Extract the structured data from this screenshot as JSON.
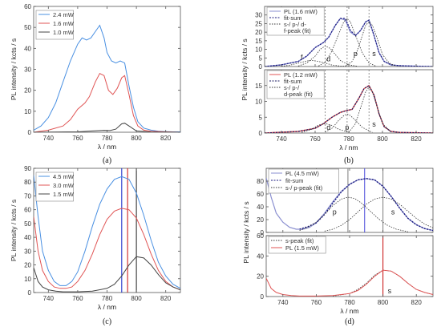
{
  "chart_data": [
    {
      "id": "a",
      "panel_label": "(a)",
      "type": "line",
      "xlabel": "λ / nm",
      "ylabel": "PL intensity / kcts / s",
      "xlim": [
        730,
        830
      ],
      "ylim": [
        0,
        60
      ],
      "xticks": [
        740,
        760,
        780,
        800,
        820
      ],
      "yticks": [
        0,
        10,
        20,
        30,
        40,
        50,
        60
      ],
      "legend_position": "top-left",
      "series": [
        {
          "name": "2.4 mW",
          "color": "#4a90e2",
          "x": [
            730,
            735,
            740,
            745,
            750,
            755,
            760,
            763,
            766,
            769,
            772,
            775,
            778,
            780,
            783,
            786,
            789,
            792,
            795,
            798,
            801,
            805,
            810,
            815,
            820,
            825,
            830
          ],
          "y": [
            1,
            3,
            7,
            14,
            24,
            34,
            42,
            45,
            44,
            45,
            48,
            51,
            45,
            38,
            34,
            33,
            34,
            33,
            22,
            12,
            5,
            2,
            1,
            0.5,
            0.3,
            0.2,
            0.2
          ]
        },
        {
          "name": "1.6 mW",
          "color": "#e05555",
          "x": [
            730,
            740,
            750,
            755,
            760,
            765,
            768,
            772,
            775,
            778,
            781,
            784,
            787,
            790,
            792,
            795,
            798,
            801,
            805,
            810,
            820,
            830
          ],
          "y": [
            0,
            1,
            3,
            6,
            11,
            14,
            17,
            24,
            28,
            27,
            20,
            18,
            21,
            26,
            27,
            18,
            8,
            3,
            1,
            0.5,
            0.2,
            0
          ]
        },
        {
          "name": "1.0 mW",
          "color": "#444444",
          "x": [
            730,
            760,
            770,
            778,
            782,
            786,
            790,
            792,
            795,
            800,
            810,
            830
          ],
          "y": [
            0,
            0.2,
            0.6,
            0.9,
            0.8,
            1.5,
            4,
            4.3,
            3,
            0.6,
            0.1,
            0
          ]
        }
      ]
    },
    {
      "id": "b_upper",
      "panel_label": "(b)",
      "type": "line",
      "xlabel": "λ / nm",
      "ylabel": "PL intensity / kcts / s",
      "xlim": [
        730,
        830
      ],
      "ylim": [
        0,
        35
      ],
      "xticks": [
        740,
        760,
        780,
        800,
        820
      ],
      "yticks": [
        0,
        5,
        10,
        15,
        20,
        25,
        30
      ],
      "vlines": [
        766,
        779,
        792
      ],
      "legend_position": "top-left",
      "legend": [
        "PL (1.6 mW)",
        "fit-sum",
        "s-/ p-/ d-",
        "f-peak (fit)"
      ],
      "annotations": [
        "f",
        "d",
        "p",
        "s"
      ],
      "series": [
        {
          "name": "PL (1.6 mW)",
          "color": "#8a8fd0",
          "x": [
            730,
            740,
            750,
            755,
            760,
            765,
            768,
            772,
            775,
            778,
            781,
            784,
            787,
            790,
            792,
            795,
            798,
            801,
            805,
            810,
            820,
            830
          ],
          "y": [
            0,
            1,
            3,
            6,
            11,
            14,
            17,
            24,
            28,
            27,
            20,
            18,
            21,
            26,
            27,
            18,
            8,
            3,
            1,
            0.5,
            0.2,
            0
          ]
        },
        {
          "name": "fit-sum",
          "color": "#1a1a80",
          "x": [
            730,
            740,
            750,
            755,
            760,
            765,
            768,
            772,
            775,
            778,
            781,
            784,
            787,
            790,
            792,
            795,
            798,
            801,
            805,
            810,
            820,
            830
          ],
          "y": [
            0,
            1,
            3,
            6,
            11,
            14,
            17,
            24,
            28,
            28,
            21,
            18,
            21,
            26,
            27,
            18,
            8,
            3,
            1,
            0.5,
            0.2,
            0
          ]
        },
        {
          "name": "f-peak",
          "color": "#333333",
          "x": [
            740,
            745,
            750,
            755,
            758,
            762,
            766,
            770,
            775,
            780
          ],
          "y": [
            0.2,
            0.8,
            2,
            3.2,
            3.6,
            3,
            2,
            0.9,
            0.3,
            0
          ]
        },
        {
          "name": "d-peak",
          "color": "#333333",
          "x": [
            750,
            755,
            760,
            763,
            766,
            769,
            772,
            775,
            780,
            785
          ],
          "y": [
            0.3,
            2,
            6,
            10,
            12,
            10.5,
            7,
            3.5,
            1,
            0.2
          ]
        },
        {
          "name": "p-peak",
          "color": "#333333",
          "x": [
            762,
            766,
            770,
            774,
            777,
            779,
            781,
            784,
            788,
            792,
            796
          ],
          "y": [
            0.3,
            2.5,
            9,
            19,
            26,
            28,
            26,
            18,
            8,
            2,
            0.3
          ]
        },
        {
          "name": "s-peak",
          "color": "#333333",
          "x": [
            778,
            782,
            785,
            788,
            790,
            792,
            794,
            797,
            800,
            804,
            808
          ],
          "y": [
            0.3,
            3,
            9,
            18,
            24,
            26,
            24,
            16,
            7,
            2,
            0.3
          ]
        }
      ]
    },
    {
      "id": "b_lower",
      "type": "line",
      "xlim": [
        730,
        830
      ],
      "ylim": [
        0,
        20
      ],
      "yticks": [
        0,
        5,
        10,
        15
      ],
      "vlines": [
        766,
        779,
        792
      ],
      "legend_position": "top-left",
      "legend": [
        "PL (1.2 mW)",
        "fit-sum",
        "s-/ p-/",
        "d-peak (fit)"
      ],
      "annotations": [
        "d",
        "p",
        "s"
      ],
      "series": [
        {
          "name": "PL (1.2 mW)",
          "color": "#e05555",
          "x": [
            730,
            750,
            760,
            765,
            770,
            775,
            778,
            782,
            786,
            789,
            792,
            795,
            798,
            801,
            805,
            810,
            830
          ],
          "y": [
            0,
            0.5,
            1.5,
            3,
            5,
            6.5,
            7,
            7.5,
            11,
            14,
            15,
            12,
            6,
            2,
            0.5,
            0.2,
            0
          ]
        },
        {
          "name": "fit-sum",
          "color": "#1a1a60",
          "x": [
            730,
            750,
            760,
            765,
            770,
            775,
            778,
            782,
            786,
            789,
            792,
            795,
            798,
            801,
            805,
            810,
            830
          ],
          "y": [
            0,
            0.5,
            1.5,
            3,
            5,
            6.5,
            7,
            7.5,
            11,
            14,
            15,
            12,
            6,
            2,
            0.5,
            0.2,
            0
          ]
        },
        {
          "name": "d-peak",
          "color": "#333333",
          "x": [
            752,
            758,
            762,
            766,
            770,
            774,
            780
          ],
          "y": [
            0.2,
            1.2,
            2.5,
            3,
            2.4,
            1.2,
            0.2
          ]
        },
        {
          "name": "p-peak",
          "color": "#333333",
          "x": [
            766,
            770,
            774,
            777,
            779,
            781,
            784,
            788,
            794
          ],
          "y": [
            0.3,
            1.5,
            4,
            5.5,
            6,
            5.5,
            4,
            1.8,
            0.2
          ]
        },
        {
          "name": "s-peak",
          "color": "#333333",
          "x": [
            780,
            784,
            787,
            790,
            792,
            794,
            797,
            800,
            805
          ],
          "y": [
            0.2,
            3,
            8,
            13,
            14.5,
            13,
            8,
            3,
            0.3
          ]
        }
      ]
    },
    {
      "id": "c",
      "panel_label": "(c)",
      "type": "line",
      "xlabel": "λ / nm",
      "ylabel": "PL intensity / kcts / s",
      "xlim": [
        730,
        830
      ],
      "ylim": [
        0,
        90
      ],
      "xticks": [
        740,
        760,
        780,
        800,
        820
      ],
      "yticks": [
        0,
        10,
        20,
        30,
        40,
        50,
        60,
        70,
        80,
        90
      ],
      "vlines": [
        {
          "x": 790,
          "color": "#2233cc"
        },
        {
          "x": 794,
          "color": "#cc2222"
        },
        {
          "x": 800,
          "color": "#333333"
        }
      ],
      "legend_position": "top-left",
      "series": [
        {
          "name": "4.5 mW",
          "color": "#4a90e2",
          "x": [
            730,
            733,
            736,
            740,
            744,
            748,
            752,
            756,
            760,
            765,
            770,
            775,
            780,
            785,
            790,
            795,
            800,
            805,
            810,
            815,
            820,
            825,
            830
          ],
          "y": [
            85,
            55,
            30,
            16,
            8,
            5,
            5,
            8,
            15,
            30,
            48,
            64,
            75,
            82,
            84,
            82,
            72,
            56,
            38,
            22,
            12,
            6,
            3
          ]
        },
        {
          "name": "3.0 mW",
          "color": "#e05555",
          "x": [
            730,
            733,
            736,
            740,
            744,
            748,
            752,
            756,
            760,
            765,
            770,
            775,
            780,
            785,
            790,
            795,
            800,
            805,
            810,
            815,
            820,
            825,
            830
          ],
          "y": [
            55,
            30,
            16,
            8,
            4,
            3,
            3,
            4,
            8,
            16,
            28,
            42,
            53,
            59,
            61,
            60,
            54,
            42,
            28,
            16,
            8,
            4,
            2
          ]
        },
        {
          "name": "1.5 mW",
          "color": "#444444",
          "x": [
            730,
            733,
            736,
            740,
            745,
            750,
            760,
            770,
            780,
            785,
            790,
            795,
            800,
            805,
            810,
            815,
            820,
            825,
            830
          ],
          "y": [
            18,
            8,
            4,
            2,
            1,
            0.5,
            0.5,
            1,
            3,
            6,
            12,
            20,
            26,
            25,
            20,
            13,
            7,
            4,
            2
          ]
        }
      ]
    },
    {
      "id": "d_upper",
      "panel_label": "(d)",
      "type": "line",
      "xlabel": "λ / nm",
      "ylabel": "PL intensity / kcts / s",
      "xlim": [
        730,
        830
      ],
      "ylim": [
        0,
        100
      ],
      "xticks": [
        740,
        760,
        780,
        800,
        820
      ],
      "yticks": [
        0,
        20,
        40,
        60,
        80
      ],
      "vlines": [
        {
          "x": 779,
          "color": "#888888"
        },
        {
          "x": 789,
          "color": "#5555dd"
        },
        {
          "x": 800,
          "color": "#888888"
        }
      ],
      "legend_position": "top-left",
      "legend": [
        "PL (4.5 mW)",
        "fit-sum",
        "s-/ p-peak (fit)"
      ],
      "annotations": [
        "p",
        "s"
      ],
      "series": [
        {
          "name": "PL (4.5 mW)",
          "color": "#8a8fd0",
          "x": [
            730,
            733,
            736,
            740,
            744,
            748,
            752,
            756,
            760,
            765,
            770,
            775,
            780,
            785,
            790,
            795,
            800,
            805,
            810,
            815,
            820,
            825,
            830
          ],
          "y": [
            85,
            55,
            30,
            16,
            8,
            5,
            5,
            8,
            15,
            30,
            48,
            64,
            75,
            82,
            84,
            82,
            72,
            56,
            38,
            22,
            12,
            6,
            3
          ]
        },
        {
          "name": "fit-sum",
          "color": "#1a1a80",
          "x": [
            750,
            755,
            760,
            765,
            770,
            775,
            780,
            785,
            790,
            795,
            800,
            805,
            810,
            815,
            820,
            825,
            830
          ],
          "y": [
            5,
            9,
            15,
            28,
            46,
            63,
            75,
            82,
            84,
            82,
            72,
            56,
            38,
            22,
            12,
            6,
            3
          ]
        },
        {
          "name": "p-peak",
          "color": "#333333",
          "x": [
            750,
            755,
            760,
            765,
            770,
            775,
            779,
            783,
            787,
            792,
            797,
            802,
            808,
            815
          ],
          "y": [
            3,
            8,
            16,
            28,
            42,
            52,
            55,
            53,
            46,
            34,
            22,
            12,
            5,
            1
          ]
        },
        {
          "name": "s-peak",
          "color": "#333333",
          "x": [
            765,
            770,
            775,
            780,
            785,
            790,
            795,
            800,
            805,
            810,
            815,
            820,
            825,
            830
          ],
          "y": [
            2,
            5,
            11,
            20,
            32,
            44,
            52,
            55,
            52,
            44,
            33,
            22,
            13,
            7
          ]
        }
      ]
    },
    {
      "id": "d_lower",
      "type": "line",
      "xlim": [
        730,
        830
      ],
      "ylim": [
        0,
        60
      ],
      "yticks": [
        0,
        20,
        40,
        60
      ],
      "vlines": [
        {
          "x": 800,
          "color": "#cc2222"
        }
      ],
      "legend_position": "top-left",
      "legend": [
        "s-peak (fit)",
        "PL (1.5 mW)"
      ],
      "annotations": [
        "s"
      ],
      "series": [
        {
          "name": "s-peak (fit)",
          "color": "#333333",
          "x": [
            770,
            780,
            785,
            790,
            795,
            800,
            805,
            810,
            815,
            820,
            825,
            830
          ],
          "y": [
            0.5,
            3,
            7,
            13,
            21,
            26,
            25,
            20,
            13,
            7,
            4,
            2
          ]
        },
        {
          "name": "PL (1.5 mW)",
          "color": "#e05555",
          "x": [
            730,
            733,
            736,
            740,
            745,
            750,
            760,
            770,
            780,
            785,
            790,
            795,
            800,
            805,
            810,
            815,
            820,
            825,
            830
          ],
          "y": [
            18,
            8,
            4,
            2,
            1,
            0.5,
            0.5,
            1,
            3,
            6,
            12,
            20,
            26,
            25,
            20,
            13,
            7,
            4,
            2
          ]
        }
      ]
    }
  ]
}
